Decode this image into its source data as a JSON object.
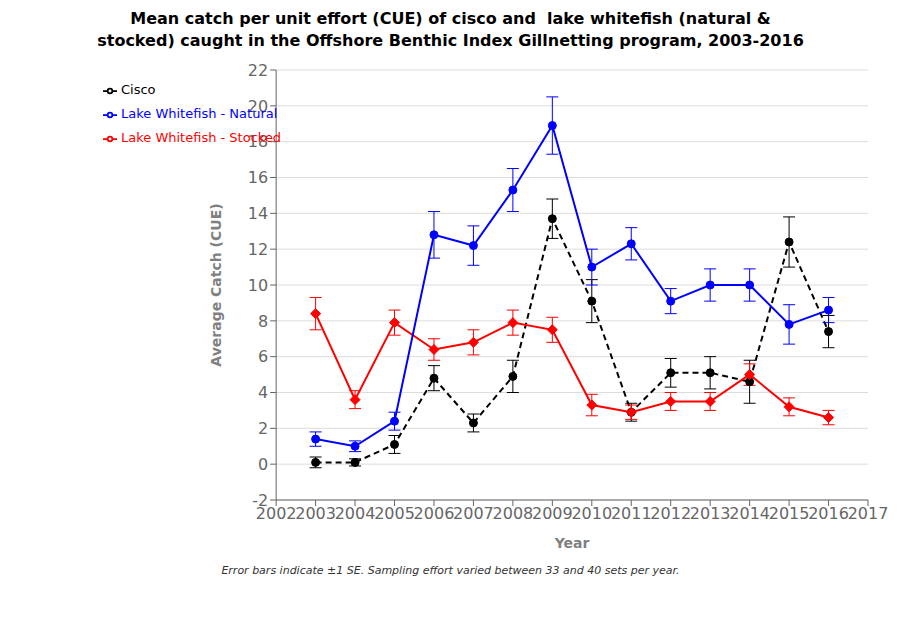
{
  "chart_data": {
    "type": "line",
    "title": "Mean catch per unit effort (CUE) of cisco and  lake whitefish (natural &\nstocked) caught in the Offshore Benthic Index Gillnetting program, 2003-2016",
    "x_label": "Year",
    "y_label": "Average Catch (CUE)",
    "x": [
      2003,
      2004,
      2005,
      2006,
      2007,
      2008,
      2009,
      2010,
      2011,
      2012,
      2013,
      2014,
      2015,
      2016
    ],
    "series": [
      {
        "name": "Cisco",
        "color": "#000000",
        "marker": "circle",
        "line_style": "dashed",
        "values": [
          0.1,
          0.1,
          1.1,
          4.8,
          2.3,
          4.9,
          13.7,
          9.1,
          2.9,
          5.1,
          5.1,
          4.6,
          12.4,
          7.4
        ],
        "errors": [
          0.3,
          0.2,
          0.5,
          0.7,
          0.5,
          0.9,
          1.1,
          1.2,
          0.5,
          0.8,
          0.9,
          1.2,
          1.4,
          0.9
        ]
      },
      {
        "name": "Lake Whitefish - Stocked",
        "color": "#ff0000",
        "marker": "diamond",
        "line_style": "solid",
        "values": [
          8.4,
          3.6,
          7.9,
          6.4,
          6.8,
          7.9,
          7.5,
          3.3,
          2.9,
          3.5,
          3.5,
          5.0,
          3.2,
          2.6
        ],
        "errors": [
          0.9,
          0.5,
          0.7,
          0.6,
          0.7,
          0.7,
          0.7,
          0.6,
          0.4,
          0.5,
          0.5,
          0.6,
          0.5,
          0.4
        ]
      },
      {
        "name": "Lake Whitefish - Natural",
        "color": "#0000ff",
        "marker": "circle",
        "line_style": "solid",
        "values": [
          1.4,
          1.0,
          2.4,
          12.8,
          12.2,
          15.3,
          18.9,
          11.0,
          12.3,
          9.1,
          10.0,
          10.0,
          7.8,
          8.6
        ],
        "errors": [
          0.4,
          0.3,
          0.5,
          1.3,
          1.1,
          1.2,
          1.6,
          1.0,
          0.9,
          0.7,
          0.9,
          0.9,
          1.1,
          0.7
        ]
      }
    ],
    "xlim": [
      2002,
      2017
    ],
    "xticks": [
      2002,
      2003,
      2004,
      2005,
      2006,
      2007,
      2008,
      2009,
      2010,
      2011,
      2012,
      2013,
      2014,
      2015,
      2016,
      2017
    ],
    "ylim": [
      -2,
      22
    ],
    "yticks": [
      -2,
      0,
      2,
      4,
      6,
      8,
      10,
      12,
      14,
      16,
      18,
      20,
      22
    ],
    "annotation": "Error bars indicate ±1 SE. Sampling effort varied between 33 and 40 sets per year.",
    "grid": true,
    "legend": "upper left"
  }
}
